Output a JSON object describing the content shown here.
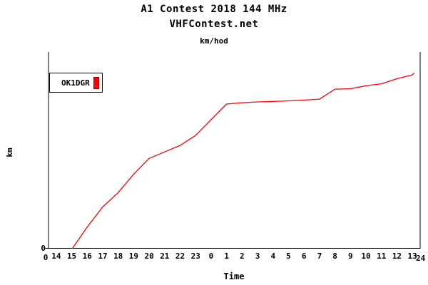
{
  "titles": {
    "line1": "A1 Contest 2018 144 MHz",
    "line2": "VHFContest.net",
    "line3": "km/hod"
  },
  "legend": {
    "label": "OK1DGR",
    "swatch_color": "#ff0000",
    "swatch_border_color": "#990000"
  },
  "axes": {
    "x_label": "Time",
    "y_label": "km",
    "y_zero_label": "0",
    "x_origin_label": "0",
    "x_end_label": "24"
  },
  "colors": {
    "background": "#ffffff",
    "axis": "#000000",
    "series": "#ff0000"
  },
  "chart_data": {
    "type": "line",
    "title": "A1 Contest 2018 144 MHz",
    "subtitle": "VHFContest.net",
    "units_title": "km/hod",
    "xlabel": "Time",
    "ylabel": "km",
    "x_tick_labels": [
      "14",
      "15",
      "16",
      "17",
      "18",
      "19",
      "20",
      "21",
      "22",
      "23",
      "0",
      "1",
      "2",
      "3",
      "4",
      "5",
      "6",
      "7",
      "8",
      "9",
      "10",
      "11",
      "12",
      "13"
    ],
    "x_axis_hours_range": [
      0,
      24
    ],
    "y_axis_labeled_ticks": [
      "0"
    ],
    "grid": false,
    "legend_position": "top-left",
    "note": "Y axis shows only 0; series values estimated as percent of full axis height. X positions are hours since axis origin (axis spans 0-24 h, clock time 14:00 through 13:00 next day; hour labels sit at half-hour offsets).",
    "series": [
      {
        "name": "OK1DGR",
        "color": "#ff0000",
        "points_h": [
          1.55,
          2.5,
          3.5,
          4.5,
          5.5,
          6.5,
          7.5,
          8.5,
          9.5,
          10.5,
          11.5,
          12.5,
          13.5,
          14.5,
          15.5,
          16.5,
          17.5,
          18.5,
          19.5,
          20.5,
          21.5,
          22.5,
          23.5,
          23.6
        ],
        "points_pct": [
          0,
          10.9,
          21.1,
          28.4,
          37.8,
          45.8,
          49.1,
          52.4,
          57.5,
          65.5,
          73.5,
          74.2,
          74.6,
          74.8,
          75.1,
          75.5,
          76.0,
          81.1,
          81.3,
          82.8,
          83.8,
          86.4,
          88.4,
          89.2
        ]
      }
    ]
  }
}
